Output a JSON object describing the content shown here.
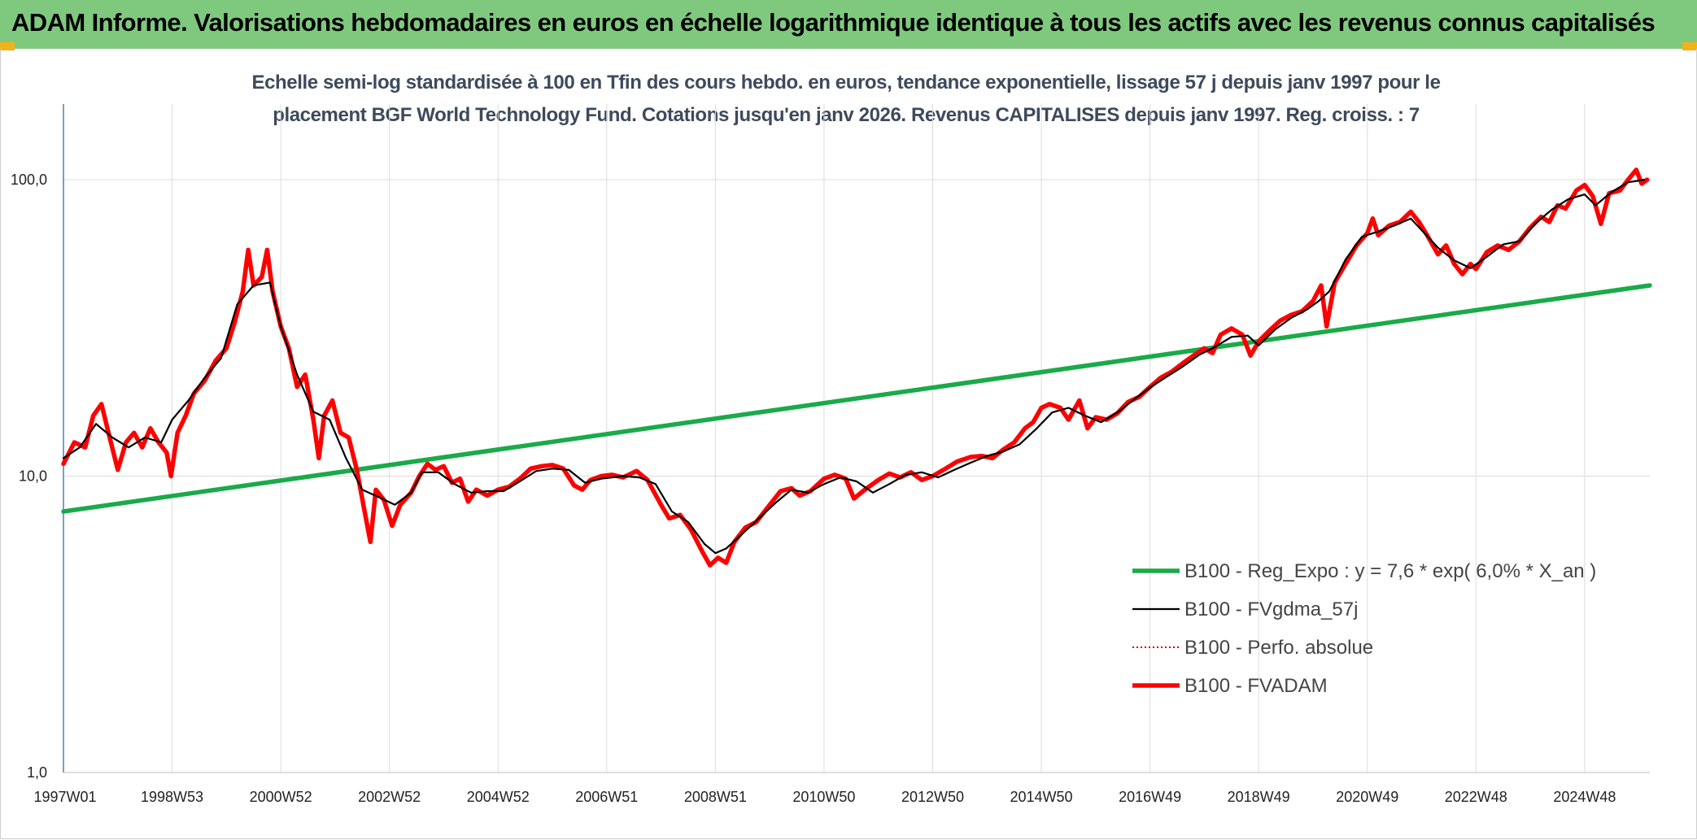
{
  "header": {
    "title": "ADAM Informe. Valorisations hebdomadaires en euros en échelle logarithmique identique à tous les actifs avec les revenus connus capitalisés",
    "background": "#7fc97f",
    "corner_color": "#f2b21b"
  },
  "chart_data": {
    "type": "line",
    "title_line1": "Echelle semi-log standardisée à 100 en Tfin des cours hebdo. en euros, tendance exponentielle, lissage 57 j depuis janv 1997 pour le",
    "title_line2": "placement BGF World Technology Fund. Cotations jusqu'en janv 2026. Revenus CAPITALISES depuis janv 1997. Reg. croiss. : 7",
    "y_scale": "log",
    "ylim": [
      1,
      180
    ],
    "y_ticks": [
      {
        "value": 1,
        "label": "1,0"
      },
      {
        "value": 10,
        "label": "10,0"
      },
      {
        "value": 100,
        "label": "100,0"
      }
    ],
    "xlim": [
      1997.0,
      2026.2
    ],
    "x_ticks": [
      {
        "x": 1997.0,
        "label": "1997W01"
      },
      {
        "x": 1999.0,
        "label": "1998W53"
      },
      {
        "x": 2001.0,
        "label": "2000W52"
      },
      {
        "x": 2003.0,
        "label": "2002W52"
      },
      {
        "x": 2005.0,
        "label": "2004W52"
      },
      {
        "x": 2007.0,
        "label": "2006W51"
      },
      {
        "x": 2009.0,
        "label": "2008W51"
      },
      {
        "x": 2011.0,
        "label": "2010W50"
      },
      {
        "x": 2013.0,
        "label": "2012W50"
      },
      {
        "x": 2015.0,
        "label": "2014W50"
      },
      {
        "x": 2017.0,
        "label": "2016W49"
      },
      {
        "x": 2019.0,
        "label": "2018W49"
      },
      {
        "x": 2021.0,
        "label": "2020W49"
      },
      {
        "x": 2023.0,
        "label": "2022W48"
      },
      {
        "x": 2025.0,
        "label": "2024W48"
      }
    ],
    "grid": true,
    "legend_position": "bottom-right",
    "series": [
      {
        "name": "B100 - Reg_Expo : y = 7,6 * exp( 6,0% *  X_an )",
        "color": "#1aaa4a",
        "style": "thick",
        "points": [
          [
            1997.0,
            7.6
          ],
          [
            2026.2,
            44.0
          ]
        ]
      },
      {
        "name": "B100 - FVgdma_57j",
        "color": "#000000",
        "style": "solid",
        "points": [
          [
            1997.0,
            11.5
          ],
          [
            1997.3,
            12.5
          ],
          [
            1997.6,
            15.0
          ],
          [
            1997.9,
            13.5
          ],
          [
            1998.2,
            12.5
          ],
          [
            1998.5,
            13.5
          ],
          [
            1998.8,
            13.0
          ],
          [
            1999.0,
            15.5
          ],
          [
            1999.3,
            18.0
          ],
          [
            1999.6,
            21.5
          ],
          [
            1999.9,
            25.0
          ],
          [
            2000.2,
            38.0
          ],
          [
            2000.5,
            44.0
          ],
          [
            2000.8,
            45.0
          ],
          [
            2001.0,
            32.0
          ],
          [
            2001.3,
            22.0
          ],
          [
            2001.6,
            16.5
          ],
          [
            2001.9,
            15.5
          ],
          [
            2002.2,
            11.5
          ],
          [
            2002.5,
            9.0
          ],
          [
            2002.8,
            8.5
          ],
          [
            2003.1,
            8.0
          ],
          [
            2003.4,
            8.8
          ],
          [
            2003.6,
            10.3
          ],
          [
            2003.9,
            10.3
          ],
          [
            2004.2,
            9.4
          ],
          [
            2004.5,
            8.8
          ],
          [
            2004.8,
            8.9
          ],
          [
            2005.1,
            8.9
          ],
          [
            2005.4,
            9.6
          ],
          [
            2005.7,
            10.4
          ],
          [
            2006.0,
            10.6
          ],
          [
            2006.3,
            10.5
          ],
          [
            2006.6,
            9.5
          ],
          [
            2006.9,
            9.8
          ],
          [
            2007.3,
            10.0
          ],
          [
            2007.6,
            9.9
          ],
          [
            2007.9,
            9.4
          ],
          [
            2008.2,
            7.6
          ],
          [
            2008.5,
            7.0
          ],
          [
            2008.8,
            5.9
          ],
          [
            2009.0,
            5.5
          ],
          [
            2009.2,
            5.7
          ],
          [
            2009.5,
            6.4
          ],
          [
            2009.8,
            7.2
          ],
          [
            2010.1,
            8.1
          ],
          [
            2010.4,
            9.0
          ],
          [
            2010.7,
            8.8
          ],
          [
            2011.0,
            9.4
          ],
          [
            2011.3,
            9.9
          ],
          [
            2011.6,
            9.6
          ],
          [
            2011.9,
            8.8
          ],
          [
            2012.2,
            9.4
          ],
          [
            2012.5,
            10.1
          ],
          [
            2012.8,
            10.3
          ],
          [
            2013.1,
            9.9
          ],
          [
            2013.4,
            10.5
          ],
          [
            2013.7,
            11.1
          ],
          [
            2014.0,
            11.7
          ],
          [
            2014.3,
            12.1
          ],
          [
            2014.6,
            12.8
          ],
          [
            2014.9,
            14.4
          ],
          [
            2015.2,
            16.4
          ],
          [
            2015.5,
            17.0
          ],
          [
            2015.8,
            16.0
          ],
          [
            2016.1,
            15.2
          ],
          [
            2016.4,
            16.4
          ],
          [
            2016.7,
            18.1
          ],
          [
            2017.0,
            19.9
          ],
          [
            2017.3,
            21.6
          ],
          [
            2017.6,
            23.4
          ],
          [
            2017.9,
            25.6
          ],
          [
            2018.2,
            27.3
          ],
          [
            2018.5,
            29.5
          ],
          [
            2018.8,
            29.8
          ],
          [
            2019.0,
            27.6
          ],
          [
            2019.3,
            31.2
          ],
          [
            2019.6,
            34.2
          ],
          [
            2019.9,
            36.6
          ],
          [
            2020.1,
            38.9
          ],
          [
            2020.3,
            42.0
          ],
          [
            2020.6,
            53.8
          ],
          [
            2020.9,
            64.2
          ],
          [
            2021.2,
            66.9
          ],
          [
            2021.5,
            70.1
          ],
          [
            2021.8,
            74.0
          ],
          [
            2022.0,
            67.6
          ],
          [
            2022.3,
            59.0
          ],
          [
            2022.6,
            53.4
          ],
          [
            2022.9,
            50.3
          ],
          [
            2023.2,
            55.0
          ],
          [
            2023.5,
            60.5
          ],
          [
            2023.8,
            62.0
          ],
          [
            2024.1,
            71.4
          ],
          [
            2024.4,
            79.4
          ],
          [
            2024.7,
            86.0
          ],
          [
            2025.0,
            89.2
          ],
          [
            2025.2,
            82.0
          ],
          [
            2025.5,
            91.0
          ],
          [
            2025.8,
            98.0
          ],
          [
            2026.1,
            100.0
          ]
        ]
      },
      {
        "name": "B100 - Perfo. absolue",
        "color": "#c00000",
        "style": "dotted",
        "points": []
      },
      {
        "name": "B100 - FVADAM",
        "color": "#ff0000",
        "style": "thick",
        "points": [
          [
            1997.0,
            11.0
          ],
          [
            1997.2,
            13.0
          ],
          [
            1997.4,
            12.5
          ],
          [
            1997.55,
            16.0
          ],
          [
            1997.7,
            17.5
          ],
          [
            1997.85,
            13.5
          ],
          [
            1998.0,
            10.5
          ],
          [
            1998.15,
            13.0
          ],
          [
            1998.3,
            14.0
          ],
          [
            1998.45,
            12.5
          ],
          [
            1998.6,
            14.5
          ],
          [
            1998.75,
            13.0
          ],
          [
            1998.9,
            12.0
          ],
          [
            1998.98,
            10.0
          ],
          [
            1999.1,
            14.0
          ],
          [
            1999.25,
            16.0
          ],
          [
            1999.4,
            19.0
          ],
          [
            1999.6,
            21.0
          ],
          [
            1999.8,
            24.5
          ],
          [
            2000.0,
            27.0
          ],
          [
            2000.15,
            33.0
          ],
          [
            2000.3,
            42.0
          ],
          [
            2000.4,
            58.0
          ],
          [
            2000.5,
            44.0
          ],
          [
            2000.65,
            47.0
          ],
          [
            2000.75,
            58.0
          ],
          [
            2000.85,
            42.0
          ],
          [
            2001.0,
            32.0
          ],
          [
            2001.15,
            27.0
          ],
          [
            2001.3,
            20.0
          ],
          [
            2001.45,
            22.0
          ],
          [
            2001.6,
            15.5
          ],
          [
            2001.7,
            11.5
          ],
          [
            2001.8,
            16.0
          ],
          [
            2001.95,
            18.0
          ],
          [
            2002.1,
            14.0
          ],
          [
            2002.25,
            13.5
          ],
          [
            2002.4,
            10.5
          ],
          [
            2002.55,
            7.5
          ],
          [
            2002.65,
            6.0
          ],
          [
            2002.75,
            9.0
          ],
          [
            2002.9,
            8.3
          ],
          [
            2003.05,
            6.8
          ],
          [
            2003.2,
            8.0
          ],
          [
            2003.4,
            8.8
          ],
          [
            2003.55,
            10.0
          ],
          [
            2003.7,
            11.0
          ],
          [
            2003.85,
            10.5
          ],
          [
            2004.0,
            10.8
          ],
          [
            2004.15,
            9.5
          ],
          [
            2004.3,
            9.8
          ],
          [
            2004.45,
            8.2
          ],
          [
            2004.6,
            9.0
          ],
          [
            2004.8,
            8.6
          ],
          [
            2005.0,
            9.0
          ],
          [
            2005.2,
            9.2
          ],
          [
            2005.4,
            9.8
          ],
          [
            2005.6,
            10.6
          ],
          [
            2005.8,
            10.8
          ],
          [
            2006.0,
            10.9
          ],
          [
            2006.2,
            10.6
          ],
          [
            2006.4,
            9.3
          ],
          [
            2006.55,
            9.0
          ],
          [
            2006.7,
            9.7
          ],
          [
            2006.9,
            10.0
          ],
          [
            2007.1,
            10.1
          ],
          [
            2007.3,
            9.9
          ],
          [
            2007.55,
            10.4
          ],
          [
            2007.75,
            9.7
          ],
          [
            2008.0,
            8.0
          ],
          [
            2008.15,
            7.2
          ],
          [
            2008.35,
            7.4
          ],
          [
            2008.55,
            6.6
          ],
          [
            2008.75,
            5.6
          ],
          [
            2008.9,
            5.0
          ],
          [
            2009.05,
            5.3
          ],
          [
            2009.2,
            5.1
          ],
          [
            2009.35,
            6.0
          ],
          [
            2009.55,
            6.7
          ],
          [
            2009.75,
            7.0
          ],
          [
            2010.0,
            8.0
          ],
          [
            2010.2,
            8.9
          ],
          [
            2010.4,
            9.1
          ],
          [
            2010.55,
            8.6
          ],
          [
            2010.75,
            8.9
          ],
          [
            2011.0,
            9.8
          ],
          [
            2011.2,
            10.1
          ],
          [
            2011.4,
            9.8
          ],
          [
            2011.55,
            8.4
          ],
          [
            2011.75,
            9.0
          ],
          [
            2012.0,
            9.7
          ],
          [
            2012.2,
            10.2
          ],
          [
            2012.4,
            9.9
          ],
          [
            2012.6,
            10.3
          ],
          [
            2012.8,
            9.7
          ],
          [
            2013.0,
            10.0
          ],
          [
            2013.2,
            10.5
          ],
          [
            2013.45,
            11.2
          ],
          [
            2013.7,
            11.6
          ],
          [
            2013.9,
            11.7
          ],
          [
            2014.1,
            11.5
          ],
          [
            2014.3,
            12.3
          ],
          [
            2014.5,
            13.0
          ],
          [
            2014.7,
            14.5
          ],
          [
            2014.85,
            15.2
          ],
          [
            2015.0,
            17.0
          ],
          [
            2015.15,
            17.5
          ],
          [
            2015.35,
            17.0
          ],
          [
            2015.5,
            15.5
          ],
          [
            2015.7,
            18.0
          ],
          [
            2015.85,
            14.5
          ],
          [
            2016.0,
            15.8
          ],
          [
            2016.2,
            15.5
          ],
          [
            2016.4,
            16.3
          ],
          [
            2016.6,
            17.8
          ],
          [
            2016.8,
            18.5
          ],
          [
            2017.0,
            20.0
          ],
          [
            2017.2,
            21.5
          ],
          [
            2017.4,
            22.5
          ],
          [
            2017.6,
            24.0
          ],
          [
            2017.8,
            25.5
          ],
          [
            2018.0,
            27.0
          ],
          [
            2018.15,
            26.0
          ],
          [
            2018.3,
            30.0
          ],
          [
            2018.5,
            31.5
          ],
          [
            2018.7,
            30.0
          ],
          [
            2018.85,
            25.5
          ],
          [
            2019.0,
            28.5
          ],
          [
            2019.2,
            31.0
          ],
          [
            2019.4,
            33.5
          ],
          [
            2019.6,
            35.0
          ],
          [
            2019.8,
            36.0
          ],
          [
            2020.0,
            39.0
          ],
          [
            2020.15,
            44.0
          ],
          [
            2020.25,
            32.0
          ],
          [
            2020.4,
            45.0
          ],
          [
            2020.6,
            52.0
          ],
          [
            2020.8,
            60.0
          ],
          [
            2021.0,
            66.0
          ],
          [
            2021.1,
            74.0
          ],
          [
            2021.2,
            65.0
          ],
          [
            2021.4,
            70.0
          ],
          [
            2021.6,
            72.0
          ],
          [
            2021.8,
            78.0
          ],
          [
            2021.95,
            72.0
          ],
          [
            2022.1,
            65.0
          ],
          [
            2022.3,
            56.0
          ],
          [
            2022.45,
            60.0
          ],
          [
            2022.6,
            52.0
          ],
          [
            2022.75,
            48.0
          ],
          [
            2022.9,
            52.0
          ],
          [
            2023.0,
            50.0
          ],
          [
            2023.2,
            57.0
          ],
          [
            2023.4,
            60.0
          ],
          [
            2023.6,
            58.0
          ],
          [
            2023.8,
            62.0
          ],
          [
            2024.0,
            69.0
          ],
          [
            2024.2,
            75.0
          ],
          [
            2024.35,
            72.0
          ],
          [
            2024.5,
            82.0
          ],
          [
            2024.65,
            80.0
          ],
          [
            2024.85,
            92.0
          ],
          [
            2025.0,
            96.0
          ],
          [
            2025.15,
            88.0
          ],
          [
            2025.3,
            71.0
          ],
          [
            2025.45,
            90.0
          ],
          [
            2025.65,
            92.0
          ],
          [
            2025.8,
            100.0
          ],
          [
            2025.95,
            108.0
          ],
          [
            2026.05,
            97.0
          ],
          [
            2026.15,
            100.0
          ]
        ]
      }
    ]
  }
}
